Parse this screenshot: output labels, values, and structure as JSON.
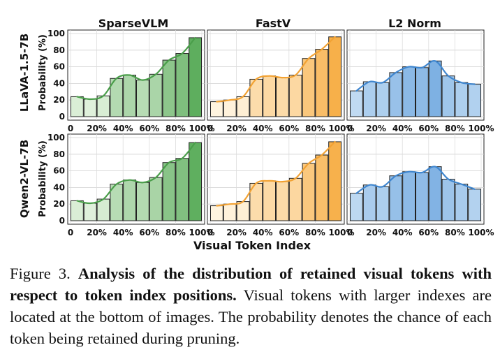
{
  "chart_data": [
    {
      "type": "bar",
      "model": "LLaVA-1.5-7B",
      "title": "SparseVLM",
      "ylabel": "Probability (%)",
      "ylim": [
        0,
        100
      ],
      "yticks": [
        "0",
        "20",
        "40",
        "60",
        "80",
        "100"
      ],
      "xticks": [
        "0",
        "20%",
        "40%",
        "60%",
        "80%",
        "100%"
      ],
      "values": [
        24,
        21,
        25,
        46,
        50,
        44,
        51,
        68,
        76,
        95
      ],
      "palette": "green"
    },
    {
      "type": "bar",
      "model": "LLaVA-1.5-7B",
      "title": "FastV",
      "ylabel": "Probability (%)",
      "ylim": [
        0,
        100
      ],
      "yticks": [
        "0",
        "20",
        "40",
        "60",
        "80",
        "100"
      ],
      "xticks": [
        "0",
        "20%",
        "40%",
        "60%",
        "80%",
        "100%"
      ],
      "values": [
        18,
        20,
        24,
        45,
        49,
        47,
        50,
        70,
        81,
        96
      ],
      "palette": "orange"
    },
    {
      "type": "bar",
      "model": "LLaVA-1.5-7B",
      "title": "L2 Norm",
      "ylabel": "Probability (%)",
      "ylim": [
        0,
        100
      ],
      "yticks": [
        "0",
        "20",
        "40",
        "60",
        "80",
        "100"
      ],
      "xticks": [
        "0",
        "20%",
        "40%",
        "60%",
        "80%",
        "100%"
      ],
      "values": [
        31,
        42,
        41,
        53,
        60,
        59,
        67,
        49,
        41,
        39
      ],
      "palette": "blue"
    },
    {
      "type": "bar",
      "model": "Qwen2-VL-7B",
      "title": "SparseVLM",
      "ylabel": "Probability (%)",
      "ylim": [
        0,
        100
      ],
      "yticks": [
        "0",
        "20",
        "40",
        "60",
        "80",
        "100"
      ],
      "xticks": [
        "0",
        "20%",
        "40%",
        "60%",
        "80%",
        "100%"
      ],
      "values": [
        24,
        21,
        26,
        44,
        49,
        46,
        52,
        70,
        75,
        94
      ],
      "palette": "green"
    },
    {
      "type": "bar",
      "model": "Qwen2-VL-7B",
      "title": "FastV",
      "ylabel": "Probability (%)",
      "ylim": [
        0,
        100
      ],
      "yticks": [
        "0",
        "20",
        "40",
        "60",
        "80",
        "100"
      ],
      "xticks": [
        "0",
        "20%",
        "40%",
        "60%",
        "80%",
        "100%"
      ],
      "values": [
        18,
        20,
        23,
        45,
        48,
        47,
        51,
        69,
        79,
        95
      ],
      "palette": "orange"
    },
    {
      "type": "bar",
      "model": "Qwen2-VL-7B",
      "title": "L2 Norm",
      "ylabel": "Probability (%)",
      "ylim": [
        0,
        100
      ],
      "yticks": [
        "0",
        "20",
        "40",
        "60",
        "80",
        "100"
      ],
      "xticks": [
        "0",
        "20%",
        "40%",
        "60%",
        "80%",
        "100%"
      ],
      "values": [
        33,
        43,
        41,
        54,
        59,
        58,
        65,
        50,
        44,
        38
      ],
      "palette": "blue"
    }
  ],
  "labels": {
    "columns": [
      "SparseVLM",
      "FastV",
      "L2 Norm"
    ],
    "rows": [
      "LLaVA-1.5-7B",
      "Qwen2-VL-7B"
    ],
    "ylabel": "Probability (%)",
    "xlabel": "Visual Token Index"
  },
  "colors": {
    "green": [
      "#e4f3e0",
      "#5cad5c",
      "#4a9e4a"
    ],
    "orange": [
      "#fff4df",
      "#f7b04a",
      "#f2a233"
    ],
    "blue": [
      "#d7e9f8",
      "#4a90d6",
      "#3f86cf"
    ]
  },
  "caption": {
    "prefix": "Figure 3.",
    "bold": "Analysis of the distribution of retained visual tokens with respect to token index positions.",
    "text": "Visual tokens with larger indexes are located at the bottom of images. The probability denotes the chance of each token being retained during pruning."
  }
}
